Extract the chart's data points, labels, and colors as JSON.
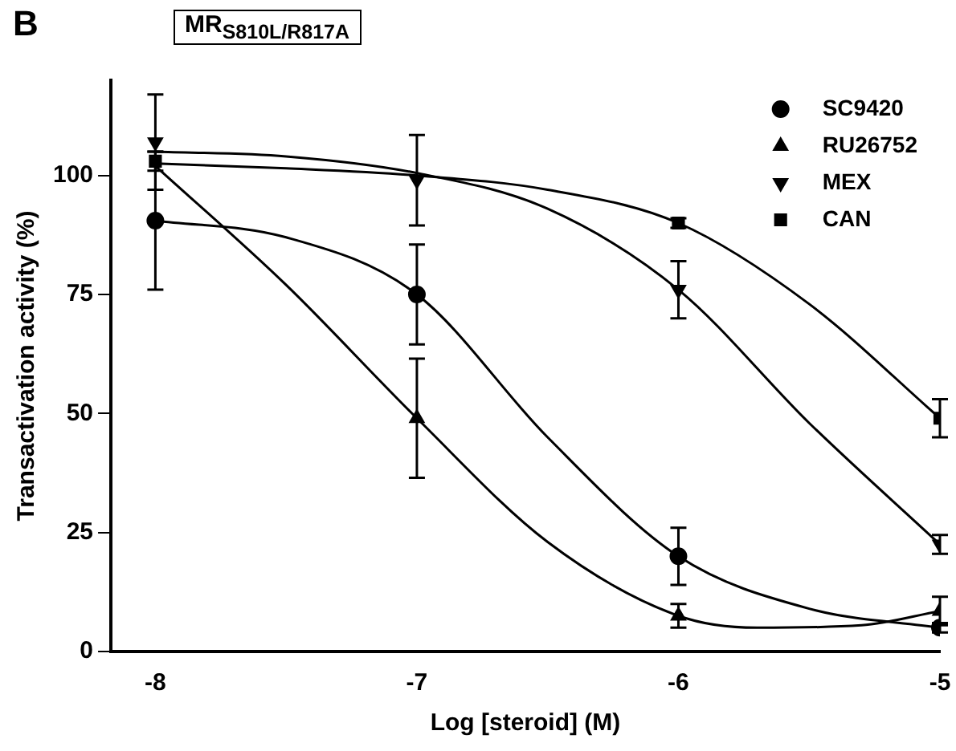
{
  "chart_data": {
    "type": "scatter",
    "title": "MR$_{S810L/R817A}$",
    "annotations": [
      "B"
    ],
    "xlabel": "Log [steroid] (M)",
    "ylabel": "Transactivation activity (%)",
    "x": [
      -8,
      -7,
      -6,
      -5
    ],
    "xlim": [
      -8.17,
      -5
    ],
    "xticks": [
      -8,
      -7,
      -6,
      -5
    ],
    "ylim": [
      0,
      120
    ],
    "yticks": [
      0,
      25,
      50,
      75,
      100
    ],
    "grid": false,
    "legend": "top right",
    "series": [
      {
        "name": "SC9420",
        "marker": "circle",
        "color": "#000000",
        "values": [
          90.5,
          75,
          20,
          5
        ],
        "errors": [
          14.5,
          10.5,
          6,
          1
        ]
      },
      {
        "name": "RU26752",
        "marker": "triangle",
        "color": "#000000",
        "values": [
          null,
          49,
          7.5,
          8.5
        ],
        "errors": [
          null,
          12.5,
          2.5,
          3
        ]
      },
      {
        "name": "MEX",
        "marker": "triangle-down",
        "color": "#000000",
        "values": [
          107,
          99,
          76,
          22.5
        ],
        "errors": [
          10,
          9.5,
          6,
          2
        ]
      },
      {
        "name": "CAN",
        "marker": "square",
        "color": "#000000",
        "values": [
          103,
          null,
          90,
          49
        ],
        "errors": [
          2,
          null,
          1,
          4
        ]
      },
      {
        "type": "line",
        "marker": "none",
        "color": "#000000",
        "x": [
          -8,
          -7.5,
          -7,
          -6.5,
          -6,
          -5.5,
          -5
        ],
        "values": [
          90.5,
          87,
          75,
          45,
          20,
          9,
          5
        ]
      },
      {
        "type": "line",
        "marker": "none",
        "color": "#000000",
        "x": [
          -8,
          -7.5,
          -7,
          -6.5,
          -6,
          -5.7,
          -5.3,
          -5
        ],
        "values": [
          102,
          77,
          49,
          23,
          7.5,
          5,
          5.5,
          8.5
        ]
      },
      {
        "type": "line",
        "marker": "none",
        "color": "#000000",
        "x": [
          -8,
          -7.5,
          -7,
          -6.5,
          -6,
          -5.5,
          -5
        ],
        "values": [
          105,
          104,
          100.5,
          93,
          76,
          48,
          22.5
        ]
      },
      {
        "type": "line",
        "marker": "none",
        "color": "#000000",
        "x": [
          -8,
          -7.5,
          -7,
          -6.5,
          -6,
          -5.5,
          -5
        ],
        "values": [
          102.5,
          101.5,
          100,
          97,
          90,
          73,
          49
        ]
      }
    ]
  }
}
